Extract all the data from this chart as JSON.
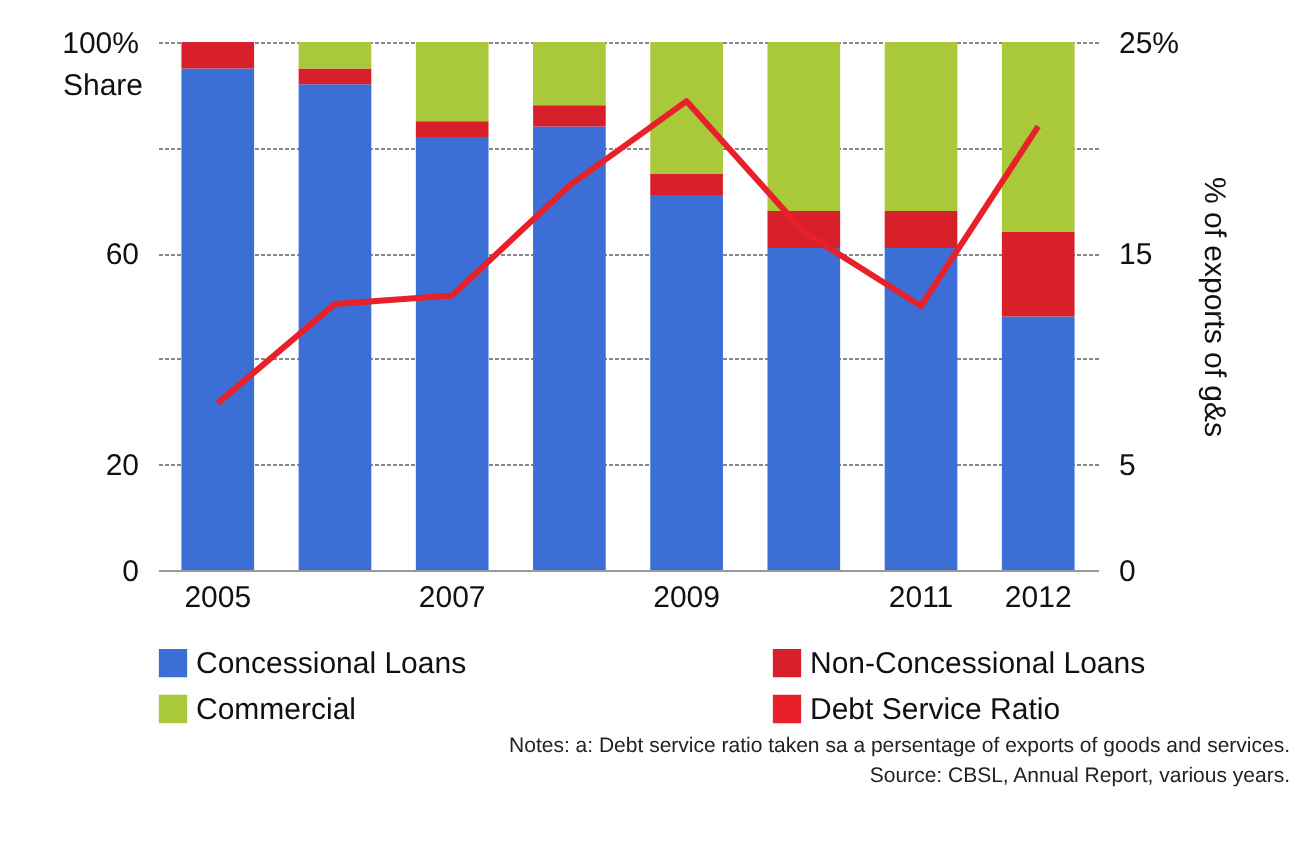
{
  "chart_data": {
    "type": "bar",
    "stacked": true,
    "categories": [
      "2005",
      null,
      "2007",
      null,
      "2009",
      null,
      "2011",
      "2012"
    ],
    "series": [
      {
        "name": "Concessional Loans",
        "color": "#3b6fd6",
        "values": [
          95,
          92,
          82,
          84,
          71,
          61,
          61,
          48
        ]
      },
      {
        "name": "Non-Concessional Loans",
        "color": "#d8202a",
        "values": [
          5,
          3,
          3,
          4,
          4,
          7,
          7,
          16
        ]
      },
      {
        "name": "Commercial",
        "color": "#a9c83a",
        "values": [
          0,
          5,
          15,
          12,
          25,
          32,
          32,
          36
        ]
      },
      {
        "name": "Debt Service Ratio",
        "type": "line",
        "axis": "y2",
        "color": "#e8202a",
        "values": [
          7.9,
          12.6,
          13.0,
          18.2,
          22.2,
          16.0,
          12.5,
          21.0
        ]
      }
    ],
    "ylabel": "Share",
    "y2label": "% of exports of g&s",
    "ylim": [
      0,
      100
    ],
    "yticks": [
      0,
      20,
      {
        "value": 40,
        "label": null
      },
      60,
      {
        "value": 80,
        "label": null
      },
      {
        "value": 100,
        "label": "100%"
      }
    ],
    "y2lim": [
      0,
      25
    ],
    "y2ticks": [
      0,
      5,
      15,
      {
        "value": 25,
        "label": "25%"
      }
    ],
    "grid": "y",
    "legend": "bottom",
    "line_style": "solid",
    "annotations": [
      "Notes: a:  Debt service ratio taken sa a persentage of exports of goods and services.",
      "Source: CBSL, Annual Report, various years."
    ]
  }
}
